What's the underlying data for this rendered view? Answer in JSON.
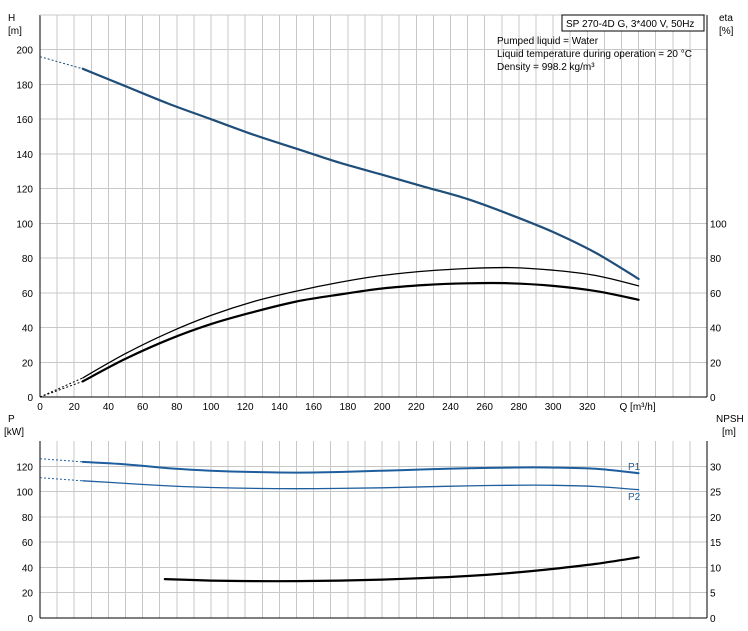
{
  "header": {
    "title": "SP 270-4D G, 3*400 V, 50Hz",
    "liquid": "Pumped liquid = Water",
    "temperature": "Liquid temperature during operation = 20 °C",
    "density": "Density = 998.2 kg/m³"
  },
  "colors": {
    "head": "#1f4e79",
    "power": "#1f5e9e",
    "eta": "#000000",
    "npsh": "#000000",
    "grid": "#c8c8c8"
  },
  "chart_data": [
    {
      "type": "line",
      "title": "",
      "xlabel": "Q [m³/h]",
      "ylabel_left": "H [m]",
      "ylabel_right": "eta [%]",
      "x_ticks": [
        0,
        20,
        40,
        60,
        80,
        100,
        120,
        140,
        160,
        180,
        200,
        220,
        240,
        260,
        280,
        300,
        320,
        340
      ],
      "x_tick_labels": [
        "0",
        "20",
        "40",
        "60",
        "80",
        "100",
        "120",
        "140",
        "160",
        "180",
        "200",
        "220",
        "240",
        "260",
        "280",
        "300",
        "320",
        "Q [m³/h]"
      ],
      "xlim": [
        0,
        390
      ],
      "ylim_left": [
        0,
        220
      ],
      "ylim_right": [
        0,
        220
      ],
      "y_ticks_left": [
        0,
        20,
        40,
        60,
        80,
        100,
        120,
        140,
        160,
        180,
        200
      ],
      "y_ticks_right": [
        0,
        20,
        40,
        60,
        80,
        100
      ],
      "grid": true,
      "series": [
        {
          "name": "H",
          "axis": "left",
          "color": "#1f4e79",
          "width": 2.2,
          "extrapolated": [
            [
              0,
              196
            ],
            [
              25,
              189
            ]
          ],
          "x": [
            25,
            50,
            75,
            100,
            125,
            150,
            175,
            200,
            225,
            250,
            275,
            300,
            325,
            350
          ],
          "y": [
            189,
            179,
            169,
            160,
            151,
            143,
            135,
            128,
            121,
            114,
            105,
            95,
            83,
            68
          ]
        },
        {
          "name": "eta",
          "axis": "right",
          "color": "#000000",
          "width": 1.3,
          "extrapolated": [
            [
              0,
              0
            ],
            [
              25,
              11
            ]
          ],
          "x": [
            25,
            50,
            75,
            100,
            125,
            150,
            175,
            200,
            225,
            250,
            275,
            300,
            325,
            350
          ],
          "y": [
            11,
            25,
            37,
            47,
            55,
            61,
            66,
            70,
            72.5,
            74,
            74.5,
            73,
            70,
            64
          ]
        },
        {
          "name": "eta",
          "axis": "right",
          "color": "#000000",
          "width": 2.2,
          "extrapolated": [
            [
              0,
              0
            ],
            [
              25,
              9
            ]
          ],
          "x": [
            25,
            50,
            75,
            100,
            125,
            150,
            175,
            200,
            225,
            250,
            275,
            300,
            325,
            350
          ],
          "y": [
            9,
            22,
            33,
            42,
            49,
            55,
            59,
            62.5,
            64.5,
            65.5,
            65.5,
            64,
            61,
            56
          ]
        }
      ]
    },
    {
      "type": "line",
      "title": "",
      "xlabel": "",
      "ylabel_left": "P [kW]",
      "ylabel_right": "NPSH [m]",
      "xlim": [
        0,
        390
      ],
      "ylim_left": [
        0,
        140
      ],
      "ylim_right": [
        0,
        35
      ],
      "y_ticks_left": [
        0,
        20,
        40,
        60,
        80,
        100,
        120
      ],
      "y_ticks_right": [
        0,
        5,
        10,
        15,
        20,
        25,
        30
      ],
      "grid": true,
      "series": [
        {
          "name": "P1",
          "axis": "left",
          "color": "#1f5e9e",
          "width": 2,
          "extrapolated": [
            [
              0,
              126
            ],
            [
              25,
              123.5
            ]
          ],
          "x": [
            25,
            50,
            75,
            100,
            125,
            150,
            175,
            200,
            225,
            250,
            275,
            300,
            325,
            350
          ],
          "y": [
            123.5,
            121.5,
            118.5,
            116.5,
            115.5,
            115,
            115.5,
            116.5,
            117.5,
            118.5,
            119,
            119,
            118,
            114.5
          ]
        },
        {
          "name": "P2",
          "axis": "left",
          "color": "#1f5e9e",
          "width": 1.3,
          "extrapolated": [
            [
              0,
              111
            ],
            [
              25,
              108.5
            ]
          ],
          "x": [
            25,
            50,
            75,
            100,
            125,
            150,
            175,
            200,
            225,
            250,
            275,
            300,
            325,
            350
          ],
          "y": [
            108.5,
            106.5,
            104.5,
            103.2,
            102.5,
            102.3,
            102.5,
            103,
            103.8,
            104.5,
            105,
            105,
            104,
            101.5
          ]
        },
        {
          "name": "NPSH",
          "axis": "right",
          "color": "#000000",
          "width": 2.2,
          "x": [
            73,
            100,
            125,
            150,
            175,
            200,
            225,
            250,
            275,
            300,
            325,
            350
          ],
          "y": [
            7.7,
            7.4,
            7.3,
            7.3,
            7.4,
            7.6,
            7.9,
            8.3,
            8.9,
            9.7,
            10.7,
            12.0
          ]
        }
      ]
    }
  ]
}
